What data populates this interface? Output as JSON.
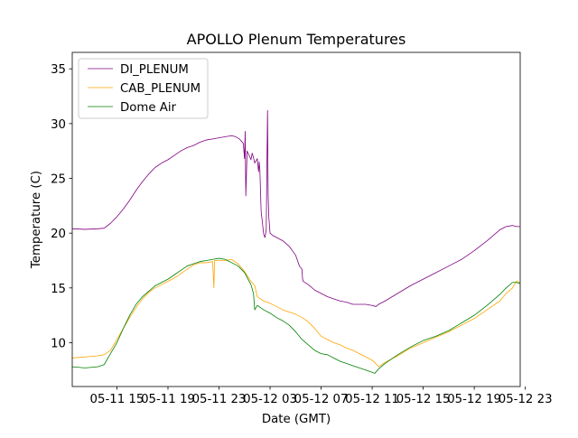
{
  "chart_data": {
    "type": "line",
    "title": "APOLLO Plenum Temperatures",
    "xlabel": "Date (GMT)",
    "ylabel": "Temperature (C)",
    "xlim": [
      11.5,
      46.6
    ],
    "ylim": [
      6,
      36.5
    ],
    "x_unit": "hours since 05-11 00:00 GMT",
    "x_ticks": [
      {
        "value": 15,
        "label": "05-11 15"
      },
      {
        "value": 19,
        "label": "05-11 19"
      },
      {
        "value": 23,
        "label": "05-11 23"
      },
      {
        "value": 27,
        "label": "05-12 03"
      },
      {
        "value": 31,
        "label": "05-12 07"
      },
      {
        "value": 35,
        "label": "05-12 11"
      },
      {
        "value": 39,
        "label": "05-12 15"
      },
      {
        "value": 43,
        "label": "05-12 19"
      },
      {
        "value": 47,
        "label": "05-12 23"
      }
    ],
    "y_ticks": [
      10,
      15,
      20,
      25,
      30,
      35
    ],
    "legend_position": "upper-left",
    "series": [
      {
        "name": "DI_PLENUM",
        "color": "#800080",
        "x": [
          11.5,
          12.5,
          13.5,
          14.0,
          14.5,
          15.0,
          15.5,
          16.0,
          16.5,
          17.0,
          17.5,
          18.0,
          18.5,
          19.0,
          19.5,
          20.0,
          20.5,
          21.0,
          21.5,
          22.0,
          22.5,
          23.0,
          23.5,
          24.0,
          24.3,
          24.6,
          24.9,
          25.0,
          25.05,
          25.1,
          25.2,
          25.4,
          25.5,
          25.6,
          25.7,
          25.8,
          26.0,
          26.1,
          26.15,
          26.2,
          26.3,
          26.5,
          26.6,
          26.7,
          26.8,
          26.85,
          26.9,
          27.0,
          27.2,
          28.0,
          28.5,
          29.0,
          29.3,
          29.5,
          29.55,
          29.6,
          30.0,
          30.5,
          31.0,
          31.5,
          32.0,
          32.5,
          33.0,
          33.5,
          34.0,
          34.5,
          35.0,
          35.3,
          35.5,
          36.0,
          37.0,
          38.0,
          39.0,
          40.0,
          41.0,
          42.0,
          43.0,
          44.0,
          45.0,
          45.5,
          46.0,
          46.3,
          46.6
        ],
        "y": [
          20.4,
          20.35,
          20.4,
          20.45,
          20.9,
          21.5,
          22.2,
          23.0,
          23.9,
          24.7,
          25.4,
          26.0,
          26.4,
          26.7,
          27.1,
          27.5,
          27.8,
          28.0,
          28.3,
          28.5,
          28.6,
          28.7,
          28.8,
          28.9,
          28.8,
          28.6,
          28.2,
          26.8,
          29.3,
          23.4,
          27.5,
          27.0,
          26.7,
          27.3,
          26.9,
          26.4,
          26.8,
          25.6,
          26.5,
          25.8,
          22.0,
          19.9,
          19.6,
          20.3,
          31.2,
          23.5,
          21.5,
          20.0,
          19.8,
          19.3,
          18.8,
          18.0,
          17.0,
          16.7,
          15.8,
          15.6,
          15.3,
          14.8,
          14.5,
          14.2,
          14.0,
          13.8,
          13.7,
          13.5,
          13.5,
          13.5,
          13.4,
          13.3,
          13.5,
          13.8,
          14.5,
          15.2,
          15.8,
          16.4,
          17.0,
          17.6,
          18.4,
          19.3,
          20.3,
          20.6,
          20.7,
          20.6,
          20.6
        ]
      },
      {
        "name": "CAB_PLENUM",
        "color": "#ffa500",
        "x": [
          11.5,
          12.5,
          13.5,
          14.0,
          14.5,
          15.0,
          15.5,
          16.0,
          16.5,
          17.0,
          17.5,
          18.0,
          18.5,
          19.0,
          19.5,
          20.0,
          20.5,
          21.0,
          21.5,
          22.0,
          22.5,
          22.6,
          22.65,
          22.7,
          23.0,
          23.5,
          24.0,
          24.5,
          25.0,
          25.5,
          25.8,
          26.0,
          26.5,
          27.0,
          27.5,
          28.0,
          28.5,
          29.0,
          29.5,
          30.0,
          30.5,
          31.0,
          31.5,
          32.0,
          32.5,
          33.0,
          33.5,
          34.0,
          34.5,
          35.0,
          35.2,
          35.5,
          36.0,
          37.0,
          38.0,
          39.0,
          40.0,
          41.0,
          42.0,
          43.0,
          44.0,
          45.0,
          45.5,
          46.0,
          46.3,
          46.6
        ],
        "y": [
          8.6,
          8.7,
          8.8,
          8.9,
          9.3,
          10.3,
          11.3,
          12.3,
          13.2,
          14.0,
          14.6,
          15.0,
          15.3,
          15.6,
          15.9,
          16.3,
          16.7,
          17.1,
          17.3,
          17.3,
          17.4,
          15.0,
          17.5,
          17.5,
          17.5,
          17.5,
          17.6,
          17.2,
          16.5,
          15.6,
          15.2,
          14.2,
          13.8,
          13.6,
          13.3,
          13.0,
          12.8,
          12.6,
          12.3,
          11.9,
          11.3,
          10.6,
          10.3,
          10.0,
          9.8,
          9.5,
          9.3,
          9.0,
          8.7,
          8.4,
          8.2,
          7.8,
          8.2,
          8.8,
          9.5,
          10.0,
          10.5,
          11.0,
          11.6,
          12.2,
          13.0,
          13.8,
          14.5,
          15.0,
          15.6,
          15.5
        ],
        "width": 0.8
      },
      {
        "name": "Dome Air",
        "color": "#008000",
        "x": [
          11.5,
          12.5,
          13.5,
          14.0,
          14.5,
          15.0,
          15.5,
          16.0,
          16.5,
          17.0,
          17.5,
          18.0,
          18.5,
          19.0,
          19.5,
          20.0,
          20.5,
          21.0,
          21.5,
          22.0,
          22.5,
          23.0,
          23.5,
          24.0,
          24.5,
          25.0,
          25.5,
          25.7,
          25.8,
          26.0,
          26.5,
          27.0,
          27.5,
          28.0,
          28.5,
          29.0,
          29.5,
          30.0,
          30.5,
          31.0,
          31.5,
          32.0,
          32.5,
          33.0,
          33.5,
          34.0,
          34.5,
          35.0,
          35.2,
          35.5,
          36.0,
          37.0,
          38.0,
          39.0,
          40.0,
          41.0,
          42.0,
          43.0,
          44.0,
          45.0,
          45.5,
          46.0,
          46.3,
          46.6
        ],
        "y": [
          7.8,
          7.7,
          7.8,
          8.0,
          9.0,
          10.0,
          11.3,
          12.5,
          13.5,
          14.2,
          14.7,
          15.2,
          15.5,
          15.8,
          16.2,
          16.6,
          17.0,
          17.2,
          17.4,
          17.5,
          17.6,
          17.7,
          17.6,
          17.3,
          17.0,
          16.4,
          15.3,
          14.5,
          13.0,
          13.4,
          13.0,
          12.7,
          12.3,
          12.0,
          11.6,
          11.0,
          10.3,
          9.8,
          9.3,
          9.0,
          8.9,
          8.6,
          8.3,
          8.1,
          7.9,
          7.7,
          7.5,
          7.3,
          7.2,
          7.6,
          8.1,
          8.9,
          9.6,
          10.2,
          10.6,
          11.1,
          11.8,
          12.5,
          13.4,
          14.4,
          15.0,
          15.5,
          15.5,
          15.4
        ]
      }
    ]
  }
}
